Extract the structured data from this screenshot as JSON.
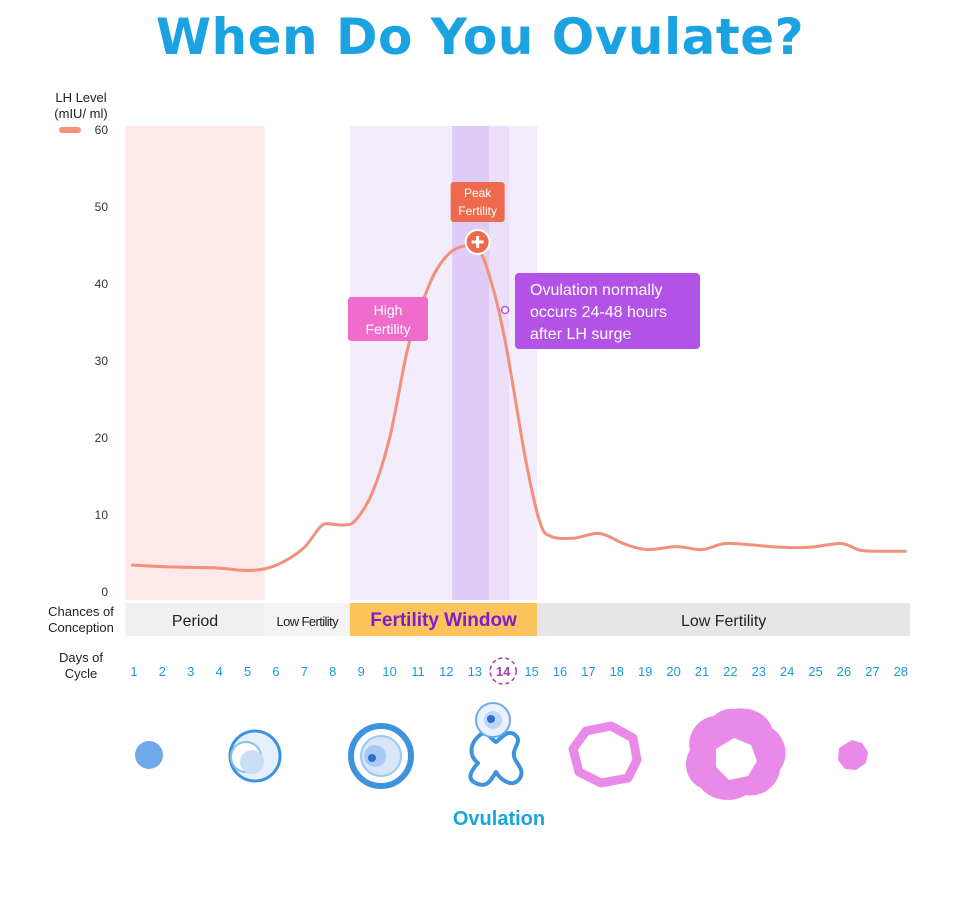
{
  "title": "When Do You Ovulate?",
  "colors": {
    "title": "#1aa3e0",
    "curve": "#f3907a",
    "period_band": "#fde8ea",
    "fertile_band": "#f2ecfb",
    "ovulation_band": "#dfccf6",
    "fertility_window": "#fcc25c",
    "low_fertility": "#e6e6e6",
    "peak_label": "#ee6a4e",
    "high_fertility_label": "#ef6ccc",
    "ovulation_note": "#b352e6",
    "follicle_blue": "#3e92de",
    "corpus_pink": "#e98ae9"
  },
  "chart_data": {
    "type": "line",
    "y_axis_title": [
      "LH Level",
      "(mIU/ ml)"
    ],
    "ylim": [
      0,
      60
    ],
    "yticks": [
      0,
      10,
      20,
      30,
      40,
      50,
      60
    ],
    "xlabel_title": [
      "Days of",
      "Cycle"
    ],
    "days": [
      1,
      2,
      3,
      4,
      5,
      6,
      7,
      8,
      9,
      10,
      11,
      12,
      13,
      14,
      15,
      16,
      17,
      18,
      19,
      20,
      21,
      22,
      23,
      24,
      25,
      26,
      27,
      28
    ],
    "highlight_day": 14,
    "series": [
      {
        "values": [
          [
            0.9,
            3.5
          ],
          [
            2,
            3.3
          ],
          [
            3,
            3.2
          ],
          [
            4,
            3.1
          ],
          [
            4.9,
            2.8
          ],
          [
            5.6,
            3.0
          ],
          [
            6.3,
            4.0
          ],
          [
            7,
            5.8
          ],
          [
            7.6,
            8.6
          ],
          [
            8,
            8.8
          ],
          [
            8.4,
            8.7
          ],
          [
            8.8,
            9.3
          ],
          [
            9.4,
            13
          ],
          [
            10,
            20
          ],
          [
            10.6,
            31
          ],
          [
            11,
            36
          ],
          [
            11.6,
            41.5
          ],
          [
            12.3,
            44.5
          ],
          [
            13.1,
            44.5
          ],
          [
            13.6,
            40
          ],
          [
            14.1,
            32
          ],
          [
            14.8,
            17
          ],
          [
            15.3,
            9
          ],
          [
            15.7,
            7.2
          ],
          [
            16.5,
            7.0
          ],
          [
            17.4,
            7.6
          ],
          [
            18.3,
            6.2
          ],
          [
            19.1,
            5.5
          ],
          [
            20.1,
            5.9
          ],
          [
            21,
            5.5
          ],
          [
            21.8,
            6.3
          ],
          [
            22.8,
            6.1
          ],
          [
            23.8,
            5.8
          ],
          [
            24.8,
            5.8
          ],
          [
            25.9,
            6.3
          ],
          [
            26.6,
            5.4
          ],
          [
            27.5,
            5.3
          ],
          [
            28.2,
            5.3
          ]
        ]
      }
    ],
    "bands": [
      {
        "name": "period",
        "from": 0.7,
        "to": 5.6
      },
      {
        "name": "fertile",
        "from": 8.6,
        "to": 12.2
      },
      {
        "name": "ovulation",
        "from": 12.2,
        "to": 14.2
      },
      {
        "name": "fertile-tail",
        "from": 14.2,
        "to": 15.2
      }
    ],
    "annotations": {
      "peak": {
        "lines": [
          "Peak",
          "Fertility"
        ],
        "x": 13.1,
        "y": 46.5
      },
      "high": {
        "lines": [
          "High",
          "Fertility"
        ]
      },
      "ovulation_note": {
        "lines": [
          "Ovulation normally",
          "occurs 24-48 hours",
          "after LH surge"
        ]
      }
    },
    "conception_row": {
      "title": [
        "Chances of",
        "Conception"
      ],
      "segments": [
        {
          "label": "Period",
          "from": 0.7,
          "to": 5.6,
          "style": "period"
        },
        {
          "label": "Low Fertility",
          "from": 5.6,
          "to": 8.6,
          "style": "low-small"
        },
        {
          "label": "Fertility Window",
          "from": 8.6,
          "to": 15.2,
          "style": "window"
        },
        {
          "label": "Low Fertility",
          "from": 15.2,
          "to": 29.3,
          "style": "low"
        }
      ]
    }
  },
  "footer_label": "Ovulation"
}
